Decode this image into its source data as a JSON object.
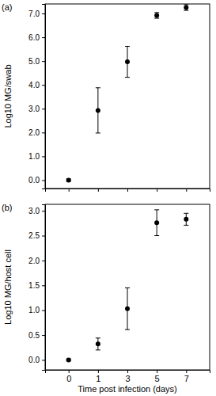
{
  "chart_data": [
    {
      "type": "scatter",
      "title": "(a)",
      "y_label": "Log10 MG/swab",
      "categories": [
        "0",
        "1",
        "3",
        "5",
        "7"
      ],
      "values": [
        0.0,
        2.93,
        4.97,
        6.92,
        7.25
      ],
      "errors": [
        0.05,
        0.95,
        0.65,
        0.12,
        0.12
      ],
      "color": "#000000",
      "marker": "circle",
      "tick_labels": "y",
      "ylim": [
        -0.35,
        7.4
      ],
      "yticks": [
        {
          "value": 0,
          "label": "0.0"
        },
        {
          "value": 1,
          "label": "1.0"
        },
        {
          "value": 2,
          "label": "2.0"
        },
        {
          "value": 3,
          "label": "3.0"
        },
        {
          "value": 4,
          "label": "4.0"
        },
        {
          "value": 5,
          "label": "5.0"
        },
        {
          "value": 6,
          "label": "6.0"
        },
        {
          "value": 7,
          "label": "7.0"
        }
      ]
    },
    {
      "type": "scatter",
      "title": "(b)",
      "y_label": "Log10 MG/host cell",
      "x_label": "Time post infection (days)",
      "categories": [
        "0",
        "1",
        "3",
        "5",
        "7"
      ],
      "values": [
        0.0,
        0.32,
        1.03,
        2.76,
        2.83
      ],
      "errors": [
        0.02,
        0.12,
        0.42,
        0.26,
        0.12
      ],
      "color": "#000000",
      "marker": "circle",
      "ylim": [
        -0.2,
        3.13
      ],
      "yticks": [
        {
          "value": 0,
          "label": "0.0"
        },
        {
          "value": 0.5,
          "label": "0.5"
        },
        {
          "value": 1,
          "label": "1.0"
        },
        {
          "value": 1.5,
          "label": "1.5"
        },
        {
          "value": 2,
          "label": "2.0"
        },
        {
          "value": 2.5,
          "label": "2.5"
        },
        {
          "value": 3,
          "label": "3.0"
        }
      ]
    }
  ]
}
